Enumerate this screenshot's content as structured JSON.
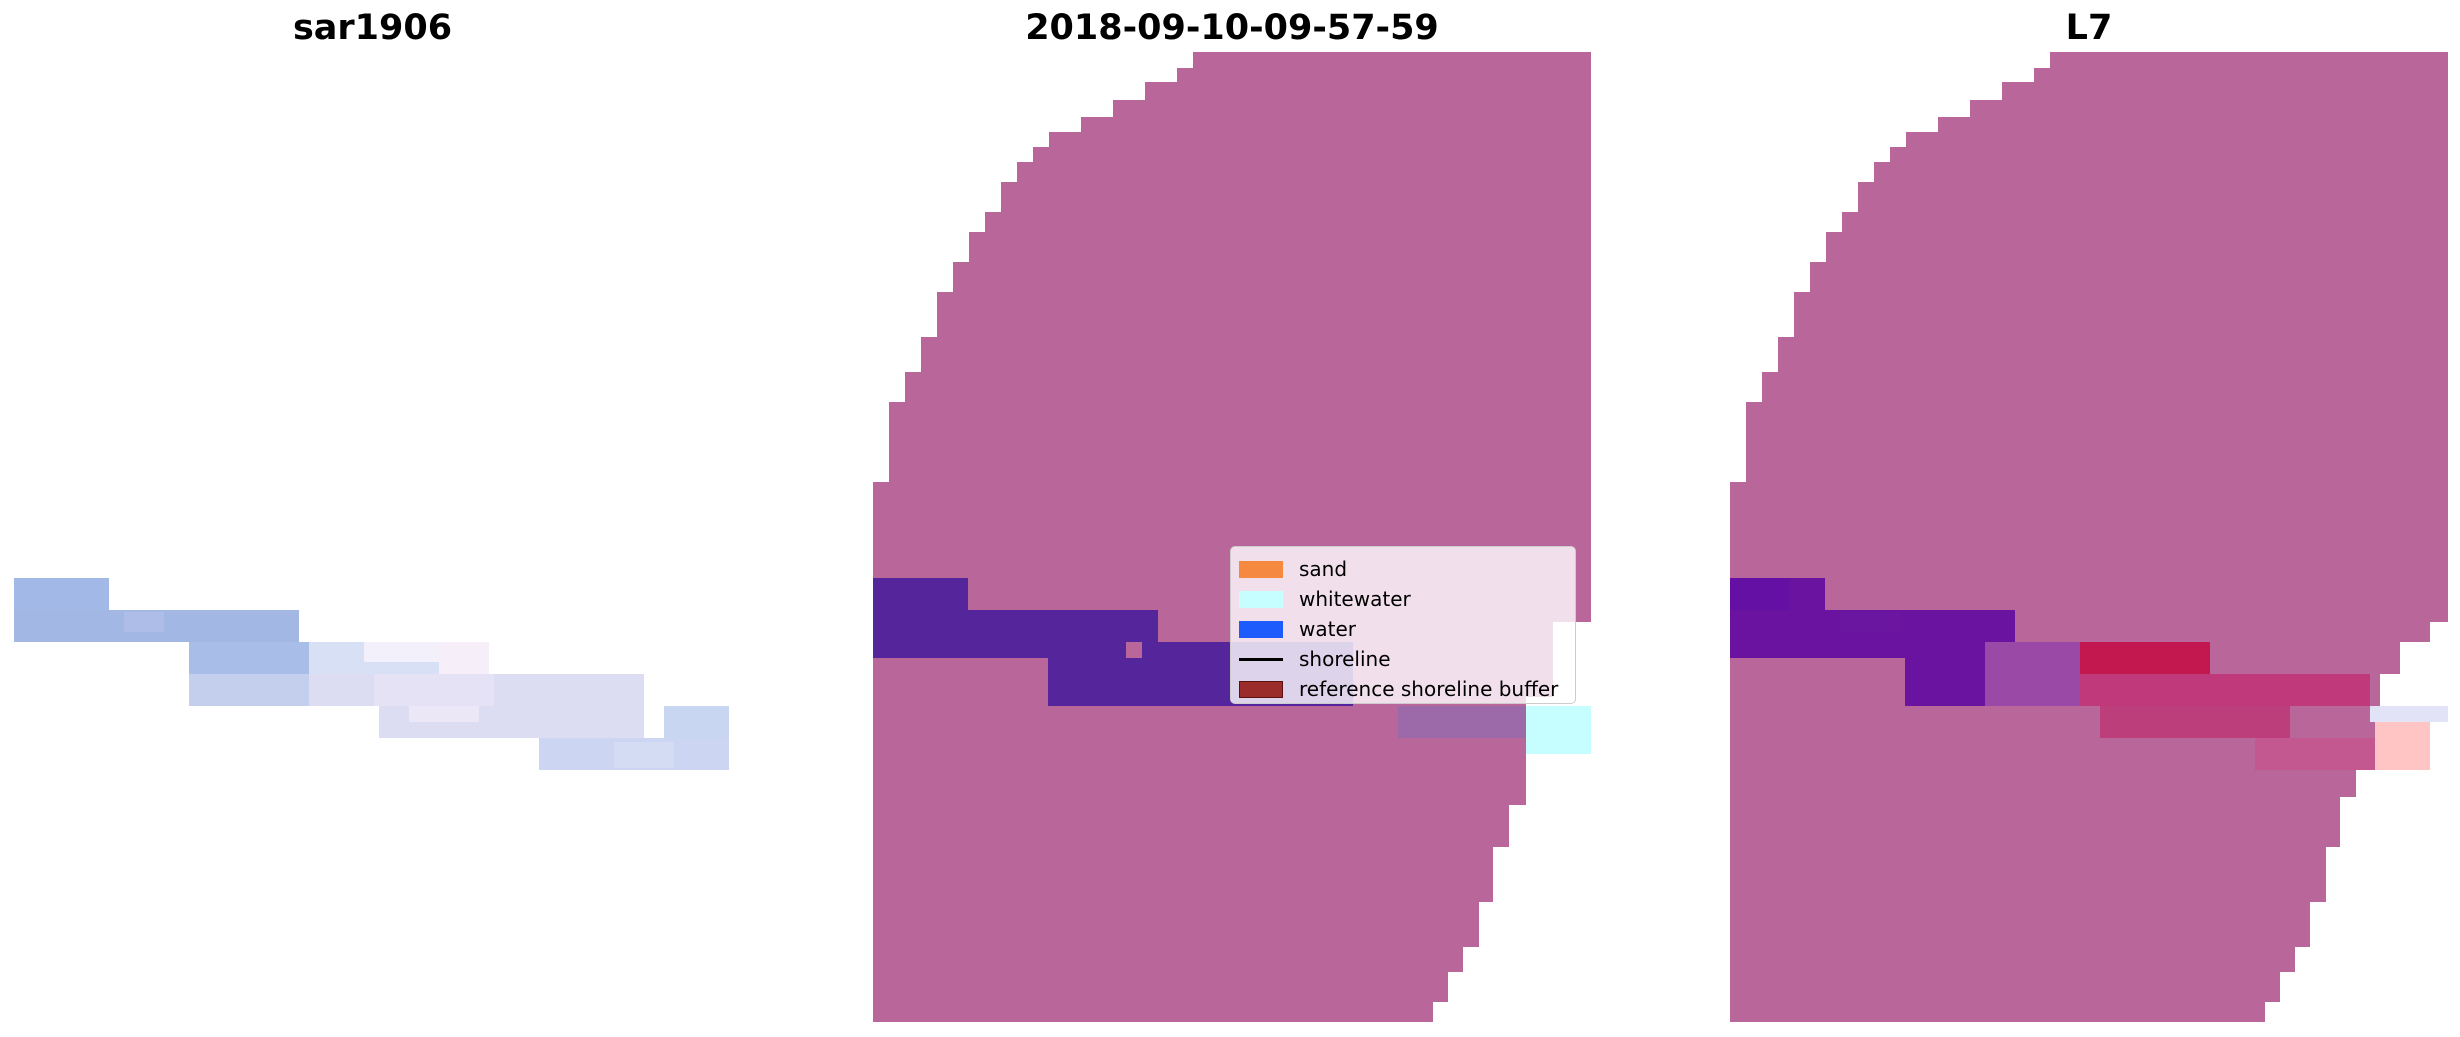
{
  "titles": {
    "left": "sar1906",
    "middle": "2018-09-10-09-57-59",
    "right": "L7"
  },
  "colors": {
    "sand": "#f4893f",
    "whitewater": "#c6feff",
    "water": "#1e5bfc",
    "shoreline": "#000000",
    "reference_shoreline_buffer": "#9b2c2c",
    "overlay_mask": "#b9669a",
    "water_overlay": "#55269b"
  },
  "legend": {
    "items": [
      {
        "key": "sand",
        "label": "sand",
        "kind": "patch"
      },
      {
        "key": "whitewater",
        "label": "whitewater",
        "kind": "patch"
      },
      {
        "key": "water",
        "label": "water",
        "kind": "patch"
      },
      {
        "key": "shoreline",
        "label": "shoreline",
        "kind": "line"
      },
      {
        "key": "reference_shoreline_buffer",
        "label": "reference shoreline buffer",
        "kind": "patch"
      }
    ]
  }
}
